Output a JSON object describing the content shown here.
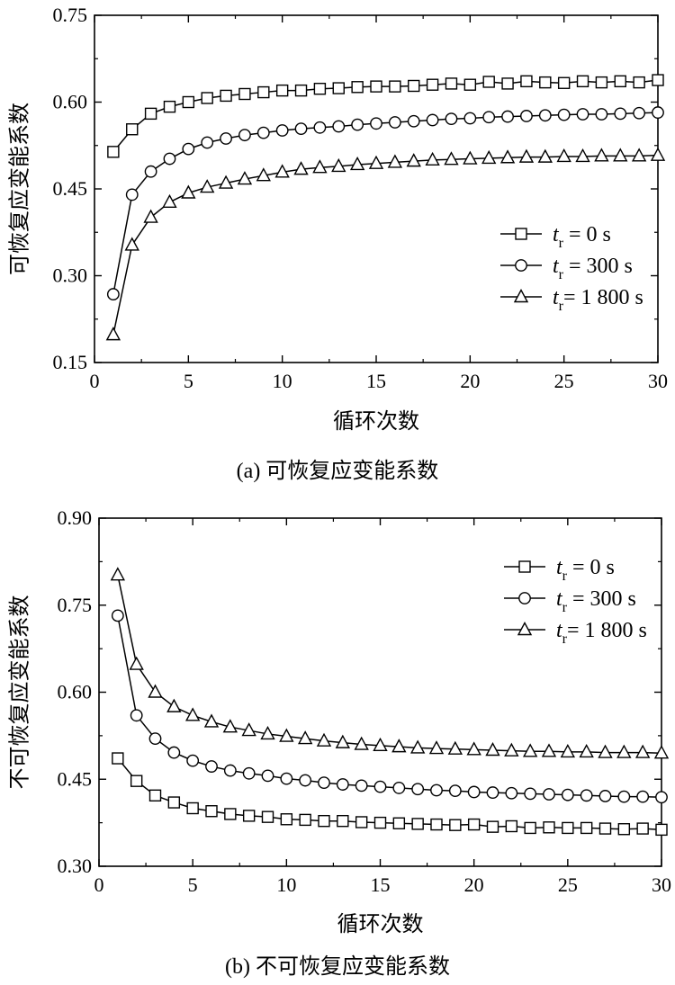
{
  "chart_data": [
    {
      "type": "line",
      "caption": "(a) 可恢复应变能系数",
      "xlabel": "循环次数",
      "ylabel": "可恢复应变能系数",
      "xlim": [
        0,
        30
      ],
      "ylim": [
        0.15,
        0.75
      ],
      "xticks": [
        "0",
        "5",
        "10",
        "15",
        "20",
        "25",
        "30"
      ],
      "yticks": [
        "0.15",
        "0.30",
        "0.45",
        "0.60",
        "0.75"
      ],
      "legend_position": "right",
      "x": [
        1,
        2,
        3,
        4,
        5,
        6,
        7,
        8,
        9,
        10,
        11,
        12,
        13,
        14,
        15,
        16,
        17,
        18,
        19,
        20,
        21,
        22,
        23,
        24,
        25,
        26,
        27,
        28,
        29,
        30
      ],
      "series": [
        {
          "name": "tr = 0 s",
          "name_italic": "t",
          "name_sub": "r",
          "name_rest": " = 0 s",
          "marker": "square",
          "values": [
            0.514,
            0.553,
            0.58,
            0.592,
            0.6,
            0.607,
            0.611,
            0.614,
            0.617,
            0.62,
            0.62,
            0.623,
            0.624,
            0.626,
            0.627,
            0.627,
            0.628,
            0.63,
            0.632,
            0.63,
            0.635,
            0.632,
            0.636,
            0.634,
            0.633,
            0.636,
            0.634,
            0.636,
            0.634,
            0.638
          ]
        },
        {
          "name": "tr = 300 s",
          "name_italic": "t",
          "name_sub": "r",
          "name_rest": " = 300 s",
          "marker": "circle",
          "values": [
            0.268,
            0.44,
            0.48,
            0.502,
            0.519,
            0.53,
            0.537,
            0.543,
            0.547,
            0.551,
            0.554,
            0.556,
            0.558,
            0.561,
            0.563,
            0.565,
            0.567,
            0.569,
            0.571,
            0.572,
            0.574,
            0.575,
            0.576,
            0.577,
            0.578,
            0.579,
            0.579,
            0.58,
            0.581,
            0.582
          ]
        },
        {
          "name": "tr = 1 800 s",
          "name_italic": "t",
          "name_sub": "r",
          "name_rest": "= 1 800 s",
          "marker": "triangle",
          "values": [
            0.198,
            0.353,
            0.401,
            0.427,
            0.443,
            0.453,
            0.46,
            0.467,
            0.473,
            0.479,
            0.484,
            0.487,
            0.489,
            0.492,
            0.494,
            0.496,
            0.498,
            0.5,
            0.501,
            0.502,
            0.503,
            0.504,
            0.505,
            0.505,
            0.506,
            0.506,
            0.507,
            0.507,
            0.507,
            0.508
          ]
        }
      ]
    },
    {
      "type": "line",
      "caption": "(b) 不可恢复应变能系数",
      "xlabel": "循环次数",
      "ylabel": "不可恢复应变能系数",
      "xlim": [
        0,
        30
      ],
      "ylim": [
        0.3,
        0.9
      ],
      "xticks": [
        "0",
        "5",
        "10",
        "15",
        "20",
        "25",
        "30"
      ],
      "yticks": [
        "0.30",
        "0.45",
        "0.60",
        "0.75",
        "0.90"
      ],
      "legend_position": "top-right",
      "x": [
        1,
        2,
        3,
        4,
        5,
        6,
        7,
        8,
        9,
        10,
        11,
        12,
        13,
        14,
        15,
        16,
        17,
        18,
        19,
        20,
        21,
        22,
        23,
        24,
        25,
        26,
        27,
        28,
        29,
        30
      ],
      "series": [
        {
          "name": "tr = 0 s",
          "name_italic": "t",
          "name_sub": "r",
          "name_rest": " = 0 s",
          "marker": "square",
          "values": [
            0.486,
            0.447,
            0.422,
            0.41,
            0.4,
            0.395,
            0.39,
            0.387,
            0.385,
            0.381,
            0.38,
            0.378,
            0.378,
            0.376,
            0.375,
            0.374,
            0.373,
            0.372,
            0.371,
            0.372,
            0.368,
            0.369,
            0.366,
            0.367,
            0.366,
            0.366,
            0.365,
            0.364,
            0.365,
            0.363
          ]
        },
        {
          "name": "tr = 300 s",
          "name_italic": "t",
          "name_sub": "r",
          "name_rest": " = 300 s",
          "marker": "circle",
          "values": [
            0.732,
            0.56,
            0.52,
            0.496,
            0.482,
            0.472,
            0.465,
            0.46,
            0.456,
            0.451,
            0.448,
            0.444,
            0.441,
            0.439,
            0.437,
            0.435,
            0.433,
            0.431,
            0.43,
            0.428,
            0.427,
            0.426,
            0.425,
            0.424,
            0.423,
            0.422,
            0.421,
            0.42,
            0.42,
            0.419
          ]
        },
        {
          "name": "tr = 1 800 s",
          "name_italic": "t",
          "name_sub": "r",
          "name_rest": "= 1 800 s",
          "marker": "triangle",
          "values": [
            0.802,
            0.648,
            0.6,
            0.575,
            0.56,
            0.549,
            0.54,
            0.534,
            0.528,
            0.524,
            0.52,
            0.516,
            0.513,
            0.51,
            0.508,
            0.506,
            0.504,
            0.503,
            0.502,
            0.501,
            0.5,
            0.499,
            0.498,
            0.498,
            0.497,
            0.497,
            0.496,
            0.496,
            0.496,
            0.495
          ]
        }
      ]
    }
  ]
}
